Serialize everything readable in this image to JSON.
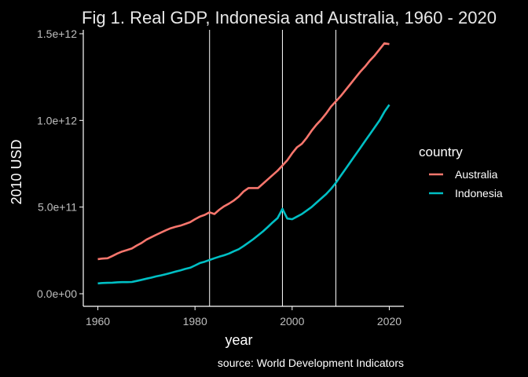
{
  "chart_data": {
    "type": "line",
    "title": "Fig 1. Real GDP, Indonesia and Australia, 1960 - 2020",
    "xlabel": "year",
    "ylabel": "2010 USD",
    "caption": "source: World Development Indicators",
    "xlim": [
      1960,
      2020
    ],
    "ylim": [
      0,
      1450000000000
    ],
    "x_ticks": [
      1960,
      1980,
      2000,
      2020
    ],
    "y_ticks": [
      0,
      500000000000,
      1000000000000,
      1500000000000
    ],
    "y_tick_labels": [
      "0.0e+00",
      "5.0e+11",
      "1.0e+12",
      "1.5e+12"
    ],
    "vertical_lines": [
      1983,
      1998,
      2009
    ],
    "grid": false,
    "legend": {
      "title": "country",
      "position": "right"
    },
    "x": [
      1960,
      1961,
      1962,
      1963,
      1964,
      1965,
      1966,
      1967,
      1968,
      1969,
      1970,
      1971,
      1972,
      1973,
      1974,
      1975,
      1976,
      1977,
      1978,
      1979,
      1980,
      1981,
      1982,
      1983,
      1984,
      1985,
      1986,
      1987,
      1988,
      1989,
      1990,
      1991,
      1992,
      1993,
      1994,
      1995,
      1996,
      1997,
      1998,
      1999,
      2000,
      2001,
      2002,
      2003,
      2004,
      2005,
      2006,
      2007,
      2008,
      2009,
      2010,
      2011,
      2012,
      2013,
      2014,
      2015,
      2016,
      2017,
      2018,
      2019,
      2020
    ],
    "series": [
      {
        "name": "Australia",
        "color": "#F8766D",
        "values": [
          200,
          203,
          205,
          218,
          232,
          244,
          252,
          261,
          278,
          293,
          312,
          326,
          340,
          353,
          366,
          378,
          386,
          393,
          403,
          413,
          430,
          445,
          455,
          470,
          460,
          485,
          505,
          520,
          538,
          560,
          590,
          610,
          610,
          610,
          635,
          660,
          685,
          710,
          740,
          770,
          810,
          845,
          865,
          900,
          940,
          975,
          1005,
          1040,
          1080,
          1110,
          1140,
          1175,
          1210,
          1245,
          1280,
          1310,
          1345,
          1375,
          1410,
          1445,
          1440
        ]
      },
      {
        "name": "Indonesia",
        "color": "#00BFC4",
        "values": [
          60,
          62,
          63,
          64,
          66,
          67,
          67,
          68,
          74,
          80,
          87,
          93,
          100,
          106,
          113,
          120,
          128,
          135,
          143,
          150,
          163,
          177,
          185,
          195,
          205,
          214,
          222,
          232,
          245,
          257,
          275,
          295,
          315,
          337,
          360,
          385,
          412,
          437,
          490,
          434,
          430,
          445,
          460,
          480,
          500,
          525,
          550,
          575,
          605,
          640,
          680,
          720,
          760,
          800,
          840,
          880,
          920,
          960,
          1000,
          1050,
          1090
        ]
      }
    ],
    "series_units_note": ""
  }
}
